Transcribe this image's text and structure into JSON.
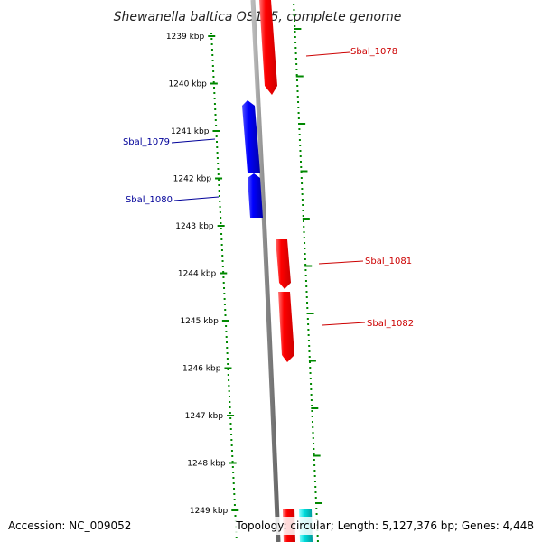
{
  "title": "Shewanella baltica OS155, complete genome",
  "accession": "Accession: NC_009052",
  "summary": "Topology: circular; Length: 5,127,376 bp; Genes: 4,448",
  "colors": {
    "forward_gene": "#ff0000",
    "reverse_gene": "#0000ff",
    "other_gene": "#00cccc",
    "backbone": "#888888",
    "ruler": "#008800",
    "forward_label": "#cc0000",
    "reverse_label": "#000099"
  },
  "ruler_ticks": [
    "1239 kbp",
    "1240 kbp",
    "1241 kbp",
    "1242 kbp",
    "1243 kbp",
    "1244 kbp",
    "1245 kbp",
    "1246 kbp",
    "1247 kbp",
    "1248 kbp",
    "1249 kbp"
  ],
  "gene_labels": {
    "sbal_1078": "Sbal_1078",
    "sbal_1079": "Sbal_1079",
    "sbal_1080": "Sbal_1080",
    "sbal_1081": "Sbal_1081",
    "sbal_1082": "Sbal_1082"
  }
}
